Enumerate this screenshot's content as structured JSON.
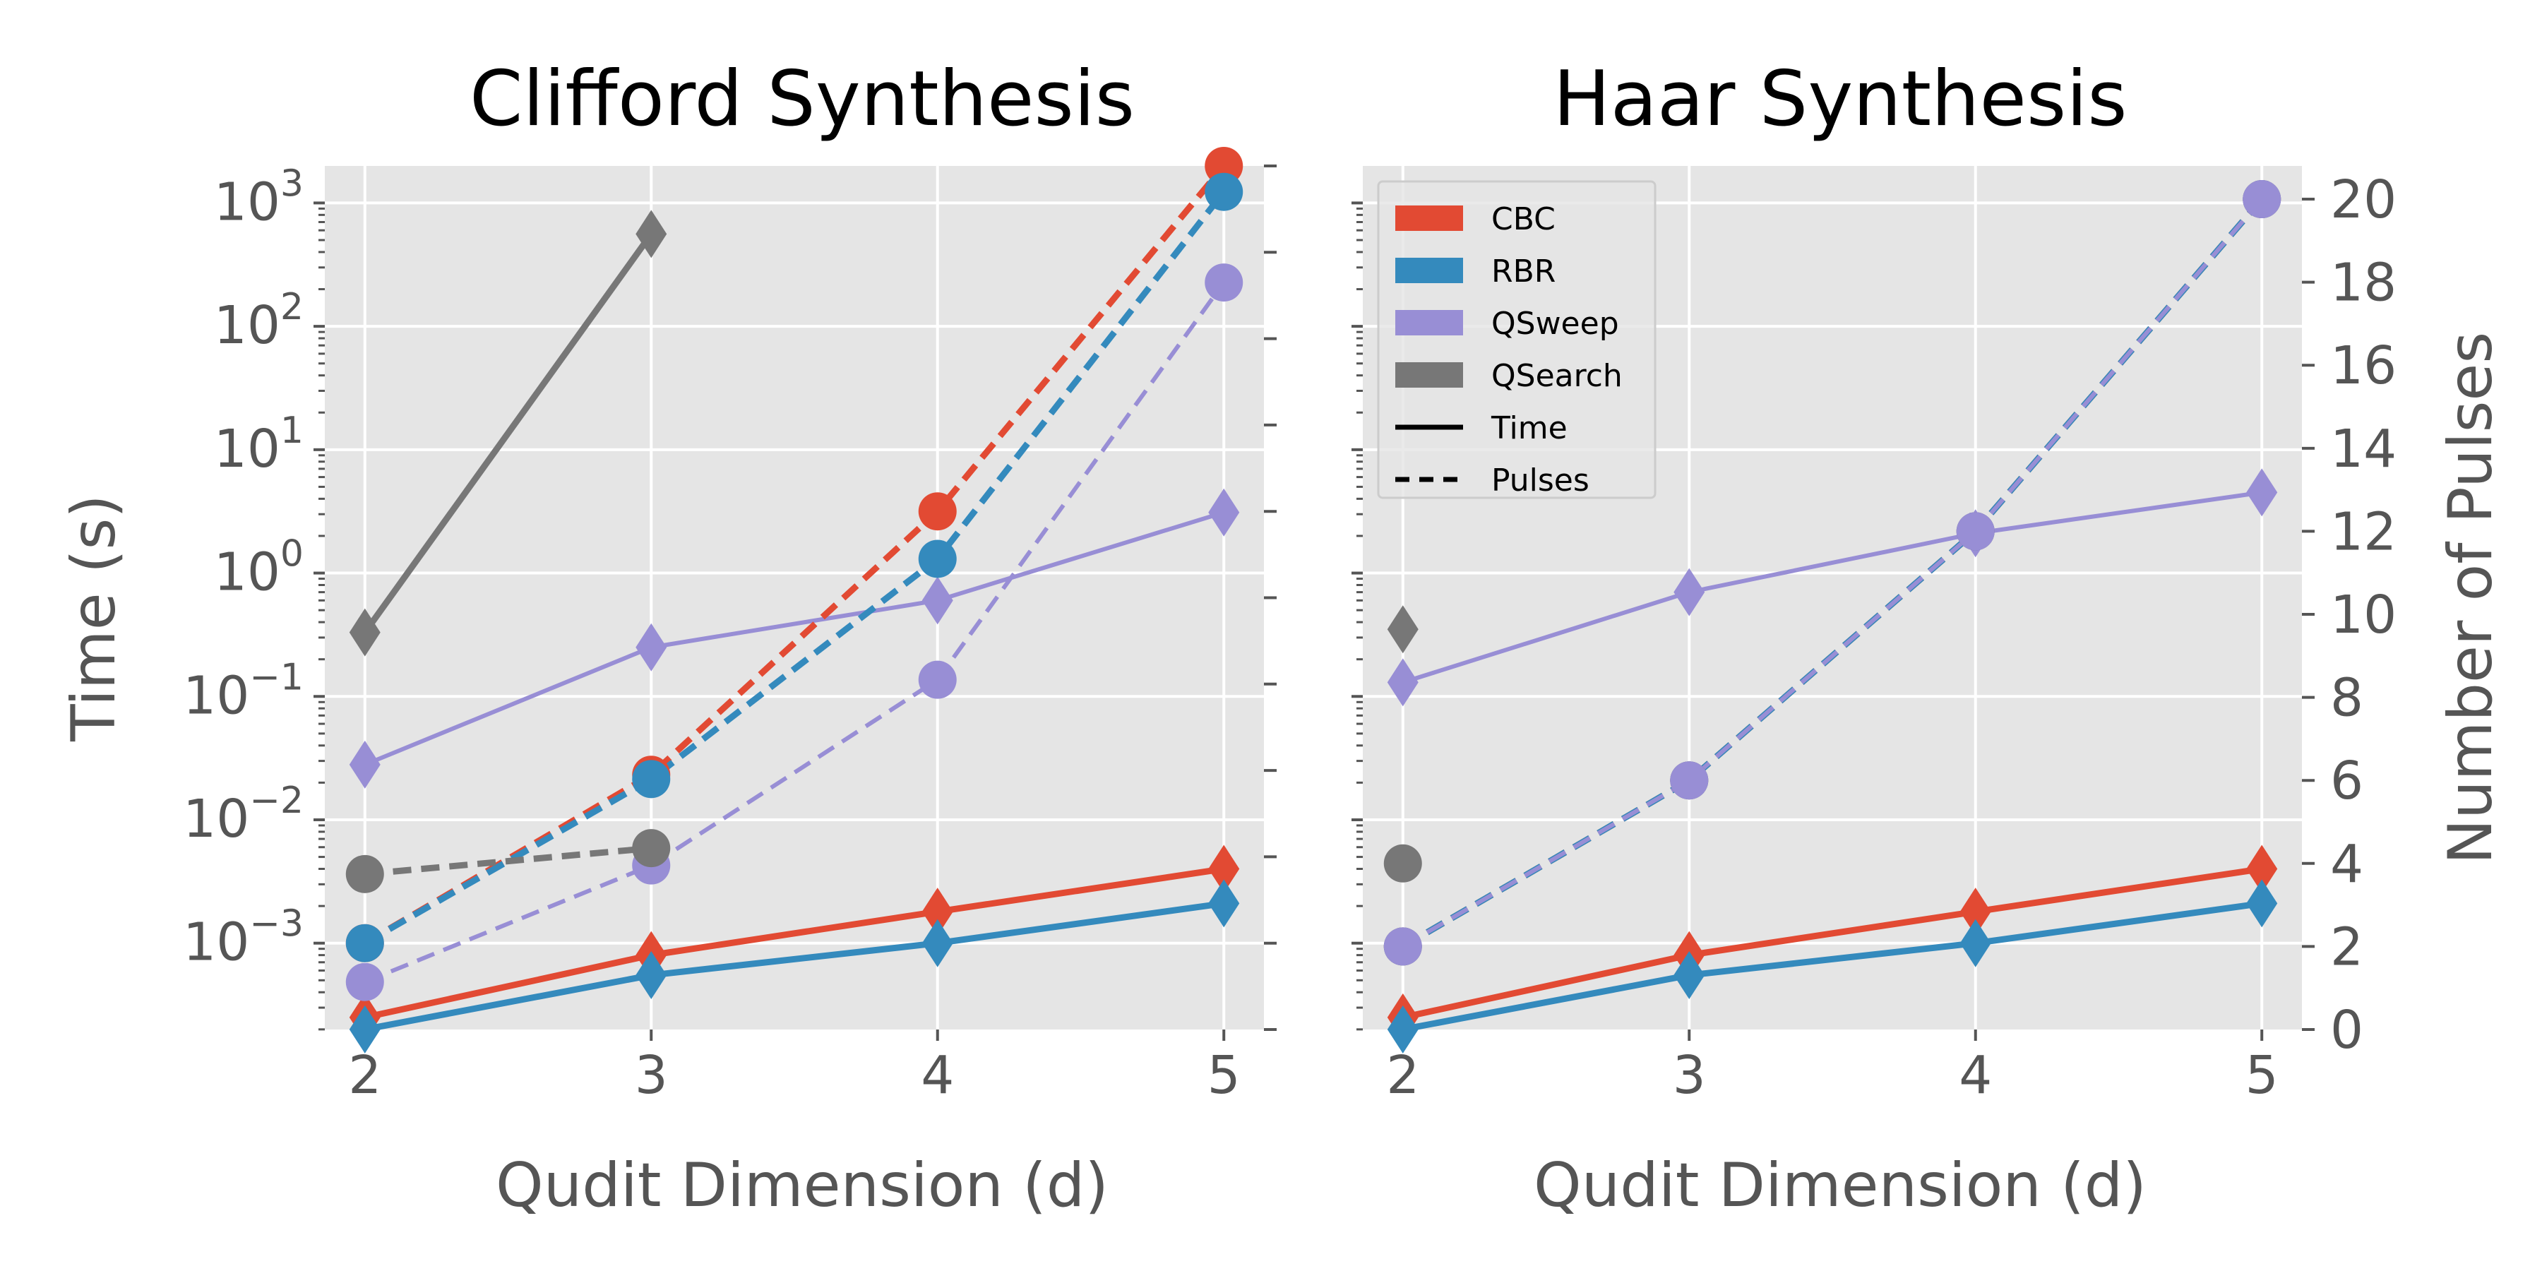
{
  "colors": {
    "CBC": "#E24A33",
    "RBR": "#348ABD",
    "QSweep": "#988ED5",
    "QSearch": "#777777",
    "panel_bg": "#E5E5E5",
    "grid": "#FFFFFF",
    "axis_text": "#555555"
  },
  "chart_data": [
    {
      "type": "line",
      "title": "Clifford Synthesis",
      "xlabel": "Qudit Dimension (d)",
      "ylabel": "Time (s)",
      "y2label": "",
      "x_ticks": [
        2,
        3,
        4,
        5
      ],
      "y_scale": "log",
      "ylim_log10": [
        -3.7,
        3.3
      ],
      "y_tick_exponents": [
        -3,
        -2,
        -1,
        0,
        1,
        2,
        3
      ],
      "y2lim": [
        0,
        20
      ],
      "y2_tick_labels_shown": false,
      "grid": true,
      "series": [
        {
          "name": "CBC",
          "metric": "time",
          "axis": "left",
          "marker": "diamond",
          "x": [
            2,
            3,
            4,
            5
          ],
          "y": [
            0.00025,
            0.0008,
            0.0018,
            0.004
          ]
        },
        {
          "name": "RBR",
          "metric": "time",
          "axis": "left",
          "marker": "diamond",
          "x": [
            2,
            3,
            4,
            5
          ],
          "y": [
            0.0002,
            0.00055,
            0.001,
            0.0021
          ]
        },
        {
          "name": "QSweep",
          "metric": "time",
          "axis": "left",
          "marker": "diamond",
          "x": [
            2,
            3,
            4,
            5
          ],
          "y": [
            0.028,
            0.25,
            0.6,
            3.1
          ]
        },
        {
          "name": "QSearch",
          "metric": "time",
          "axis": "left",
          "marker": "diamond",
          "x": [
            2,
            3
          ],
          "y": [
            0.33,
            560
          ]
        },
        {
          "name": "CBC",
          "metric": "pulses",
          "axis": "right",
          "marker": "circle",
          "x": [
            2,
            3,
            4,
            5
          ],
          "y": [
            2.0,
            5.9,
            12.0,
            20.0
          ]
        },
        {
          "name": "RBR",
          "metric": "pulses",
          "axis": "right",
          "marker": "circle",
          "x": [
            2,
            3,
            4,
            5
          ],
          "y": [
            2.0,
            5.8,
            10.9,
            19.4
          ]
        },
        {
          "name": "QSweep",
          "metric": "pulses",
          "axis": "right",
          "marker": "circle",
          "x": [
            2,
            3,
            4,
            5
          ],
          "y": [
            1.1,
            3.8,
            8.1,
            17.3
          ]
        },
        {
          "name": "QSearch",
          "metric": "pulses",
          "axis": "right",
          "marker": "circle",
          "x": [
            2,
            3
          ],
          "y": [
            3.6,
            4.2
          ]
        }
      ]
    },
    {
      "type": "line",
      "title": "Haar Synthesis",
      "xlabel": "Qudit Dimension (d)",
      "ylabel": "",
      "y2label": "Number of Pulses",
      "x_ticks": [
        2,
        3,
        4,
        5
      ],
      "y_scale": "log",
      "ylim_log10": [
        -3.7,
        3.3
      ],
      "y_tick_exponents": [
        -3,
        -2,
        -1,
        0,
        1,
        2,
        3
      ],
      "y_tick_labels_shown": false,
      "y2lim": [
        0,
        20.8
      ],
      "y2_ticks": [
        0,
        2,
        4,
        6,
        8,
        10,
        12,
        14,
        16,
        18,
        20
      ],
      "grid": true,
      "legend": {
        "position": "top-left",
        "entries": [
          {
            "label": "CBC",
            "kind": "patch",
            "color_key": "CBC"
          },
          {
            "label": "RBR",
            "kind": "patch",
            "color_key": "RBR"
          },
          {
            "label": "QSweep",
            "kind": "patch",
            "color_key": "QSweep"
          },
          {
            "label": "QSearch",
            "kind": "patch",
            "color_key": "QSearch"
          },
          {
            "label": "Time",
            "kind": "line",
            "dash": "solid"
          },
          {
            "label": "Pulses",
            "kind": "line",
            "dash": "dashed"
          }
        ]
      },
      "series": [
        {
          "name": "CBC",
          "metric": "time",
          "axis": "left",
          "marker": "diamond",
          "x": [
            2,
            3,
            4,
            5
          ],
          "y": [
            0.00025,
            0.0008,
            0.0018,
            0.004
          ]
        },
        {
          "name": "RBR",
          "metric": "time",
          "axis": "left",
          "marker": "diamond",
          "x": [
            2,
            3,
            4,
            5
          ],
          "y": [
            0.0002,
            0.00055,
            0.001,
            0.0021
          ]
        },
        {
          "name": "QSweep",
          "metric": "time",
          "axis": "left",
          "marker": "diamond",
          "x": [
            2,
            3,
            4,
            5
          ],
          "y": [
            0.13,
            0.7,
            2.1,
            4.5
          ]
        },
        {
          "name": "QSearch",
          "metric": "time",
          "axis": "left",
          "marker": "diamond",
          "x": [
            2
          ],
          "y": [
            0.35
          ]
        },
        {
          "name": "CBC",
          "metric": "pulses",
          "axis": "right",
          "marker": "circle",
          "x": [
            2,
            3,
            4,
            5
          ],
          "y": [
            2,
            6,
            12,
            20
          ]
        },
        {
          "name": "RBR",
          "metric": "pulses",
          "axis": "right",
          "marker": "circle",
          "x": [
            2,
            3,
            4,
            5
          ],
          "y": [
            2,
            6,
            12,
            20
          ]
        },
        {
          "name": "QSweep",
          "metric": "pulses",
          "axis": "right",
          "marker": "circle",
          "x": [
            2,
            3,
            4,
            5
          ],
          "y": [
            2,
            6,
            12,
            20
          ]
        },
        {
          "name": "QSearch",
          "metric": "pulses",
          "axis": "right",
          "marker": "circle",
          "x": [
            2
          ],
          "y": [
            4
          ]
        }
      ]
    }
  ]
}
